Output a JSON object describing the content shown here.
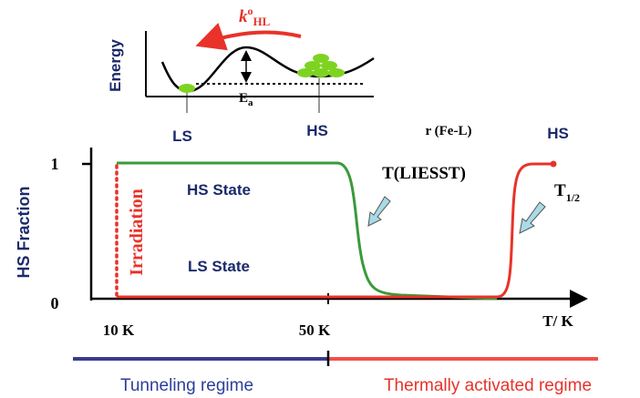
{
  "inset": {
    "y_label": "Energy",
    "rate": {
      "symbol": "k",
      "superscript": "o",
      "subscript": "HL"
    },
    "barrier": {
      "symbol": "E",
      "subscript": "a"
    },
    "left_well": "LS",
    "right_well": "HS",
    "x_label": "r (Fe-L)"
  },
  "main": {
    "corner_label": "HS",
    "y_label": "HS Fraction",
    "y_top": "1",
    "y_bottom": "0",
    "upper_state": "HS State",
    "lower_state": "LS State",
    "irradiation": "Irradiation",
    "liesst": "T(LIESST)",
    "half": {
      "symbol": "T",
      "subscript": "1/2"
    },
    "x_left": "10 K",
    "x_mid": "50 K",
    "x_label": "T/ K"
  },
  "regimes": {
    "left": "Tunneling regime",
    "right": "Thermally activated regime"
  }
}
